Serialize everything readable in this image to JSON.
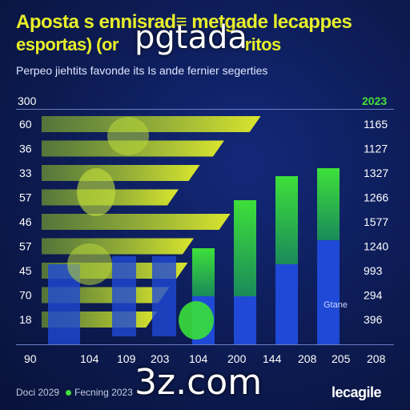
{
  "header": {
    "title_line1": "Aposta s ennisrad≡ metgade lecappes",
    "title_line2": "esportas) (or",
    "title_line2_tail": "ritos",
    "subtitle": "Perpeo jiehtits favonde its Is ande fernier segerties"
  },
  "overlays": {
    "top": "pgtada",
    "bottom": "3z.com"
  },
  "colors": {
    "background": "#0c1a4f",
    "title": "#e8ef2a",
    "green": "#44e03a",
    "blue": "#1f49d6",
    "lime": "#c9e830"
  },
  "chart_data": {
    "type": "bar",
    "top_left_value": "300",
    "right_header": "2023",
    "left_values": [
      "60",
      "36",
      "33",
      "57",
      "46",
      "57",
      "45",
      "70",
      "18"
    ],
    "right_values": [
      "1165",
      "1127",
      "1327",
      "1266",
      "1577",
      "1240",
      "993",
      "294",
      "396"
    ],
    "x_labels": [
      "90",
      "104",
      "109",
      "203",
      "104",
      "200",
      "144",
      "208",
      "205",
      "208"
    ],
    "horizontal_bars": [
      72,
      60,
      52,
      45,
      62,
      50,
      48,
      42,
      38
    ],
    "vertical_bars": [
      {
        "blue": 60,
        "green": 120
      },
      {
        "blue": 60,
        "green": 180
      },
      {
        "blue": 100,
        "green": 210
      },
      {
        "blue": 130,
        "green": 220
      }
    ],
    "bar_label": "Gtane"
  },
  "footer": {
    "left_text": "Doci 2029",
    "right_text": "Fecning 2023",
    "brand": "lecagile"
  }
}
